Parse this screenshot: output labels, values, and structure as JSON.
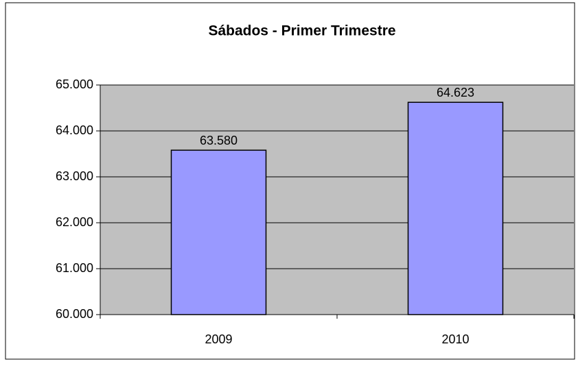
{
  "chart_data": {
    "type": "bar",
    "title": "Sábados - Primer Trimestre",
    "categories": [
      "2009",
      "2010"
    ],
    "values": [
      63580,
      64623
    ],
    "value_labels": [
      "63.580",
      "64.623"
    ],
    "color": "#9999ff",
    "ylim": [
      60000,
      65000
    ],
    "yticks": [
      {
        "value": 60000,
        "label": "60.000"
      },
      {
        "value": 61000,
        "label": "61.000"
      },
      {
        "value": 62000,
        "label": "62.000"
      },
      {
        "value": 63000,
        "label": "63.000"
      },
      {
        "value": 64000,
        "label": "64.000"
      },
      {
        "value": 65000,
        "label": "65.000"
      }
    ],
    "grid": true
  }
}
